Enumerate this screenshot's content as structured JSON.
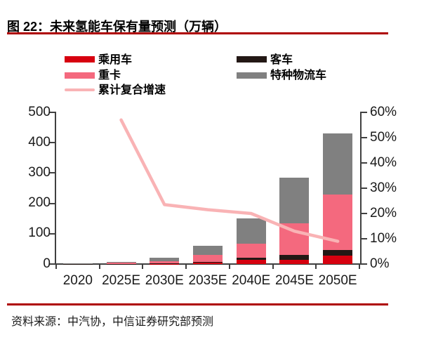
{
  "page": {
    "title": "图 22：未来氢能车保有量预测（万辆）",
    "source": "资料来源：中汽协，中信证券研究部预测",
    "accent_rule_color": "#ae0000",
    "background": "#ffffff"
  },
  "legend": {
    "items": [
      {
        "label": "乘用车",
        "type": "swatch",
        "color": "#d7000f"
      },
      {
        "label": "客车",
        "type": "swatch",
        "color": "#231815"
      },
      {
        "label": "重卡",
        "type": "swatch",
        "color": "#f4697e"
      },
      {
        "label": "特种物流车",
        "type": "swatch",
        "color": "#808080"
      },
      {
        "label": "累计复合增速",
        "type": "line",
        "color": "#f9b3b5"
      }
    ]
  },
  "chart_data": {
    "type": "bar",
    "subtype": "stacked-bars-with-line",
    "title": "未来氢能车保有量预测（万辆）",
    "categories": [
      "2020",
      "2025E",
      "2030E",
      "2035E",
      "2040E",
      "2045E",
      "2050E"
    ],
    "series": [
      {
        "name": "乘用车",
        "key": "passenger-car",
        "type": "bar",
        "color": "#d7000f",
        "values": [
          0,
          0.5,
          1,
          4,
          13,
          15,
          27
        ]
      },
      {
        "name": "客车",
        "key": "bus",
        "type": "bar",
        "color": "#231815",
        "values": [
          0.5,
          0.5,
          1.5,
          4,
          7,
          15,
          19
        ]
      },
      {
        "name": "重卡",
        "key": "heavy-truck",
        "type": "bar",
        "color": "#f4697e",
        "values": [
          1,
          4,
          7,
          21,
          48,
          105,
          184
        ]
      },
      {
        "name": "特种物流车",
        "key": "special-logistics",
        "type": "bar",
        "color": "#808080",
        "values": [
          0.5,
          3,
          10.5,
          31,
          82,
          150,
          200
        ]
      },
      {
        "name": "累计复合增速",
        "key": "cumulative-cagr",
        "type": "line",
        "color": "#f9b3b5",
        "axis": "right",
        "unit": "%",
        "values": [
          null,
          57,
          23.5,
          21.5,
          20,
          13,
          9
        ]
      }
    ],
    "stacked_totals": [
      2,
      8,
      20,
      60,
      150,
      285,
      430
    ],
    "left_axis": {
      "min": 0,
      "max": 500,
      "ticks": [
        "0",
        "100",
        "200",
        "300",
        "400",
        "500"
      ]
    },
    "right_axis": {
      "min": 0,
      "max": 60,
      "ticks": [
        "0%",
        "10%",
        "20%",
        "30%",
        "40%",
        "50%",
        "60%"
      ]
    },
    "grid": false,
    "legend_position": "top"
  }
}
